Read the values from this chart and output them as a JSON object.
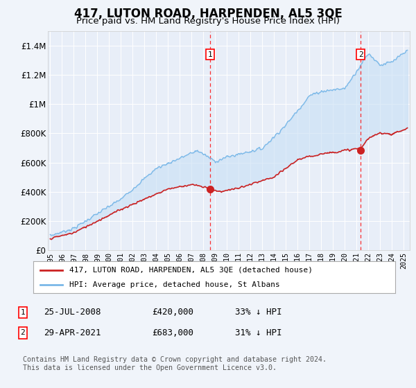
{
  "title": "417, LUTON ROAD, HARPENDEN, AL5 3QE",
  "subtitle": "Price paid vs. HM Land Registry's House Price Index (HPI)",
  "title_fontsize": 12,
  "subtitle_fontsize": 9.5,
  "ylim": [
    0,
    1500000
  ],
  "yticks": [
    0,
    200000,
    400000,
    600000,
    800000,
    1000000,
    1200000,
    1400000
  ],
  "ytick_labels": [
    "£0",
    "£200K",
    "£400K",
    "£600K",
    "£800K",
    "£1M",
    "£1.2M",
    "£1.4M"
  ],
  "background_color": "#f0f4fa",
  "plot_bg_color": "#e8eef8",
  "hpi_color": "#7ab8e8",
  "hpi_fill_color": "#c8dff5",
  "price_color": "#cc2222",
  "marker1_year": 2008.58,
  "marker1_price": 420000,
  "marker2_year": 2021.33,
  "marker2_price": 683000,
  "legend_label_price": "417, LUTON ROAD, HARPENDEN, AL5 3QE (detached house)",
  "legend_label_hpi": "HPI: Average price, detached house, St Albans",
  "footer": "Contains HM Land Registry data © Crown copyright and database right 2024.\nThis data is licensed under the Open Government Licence v3.0."
}
